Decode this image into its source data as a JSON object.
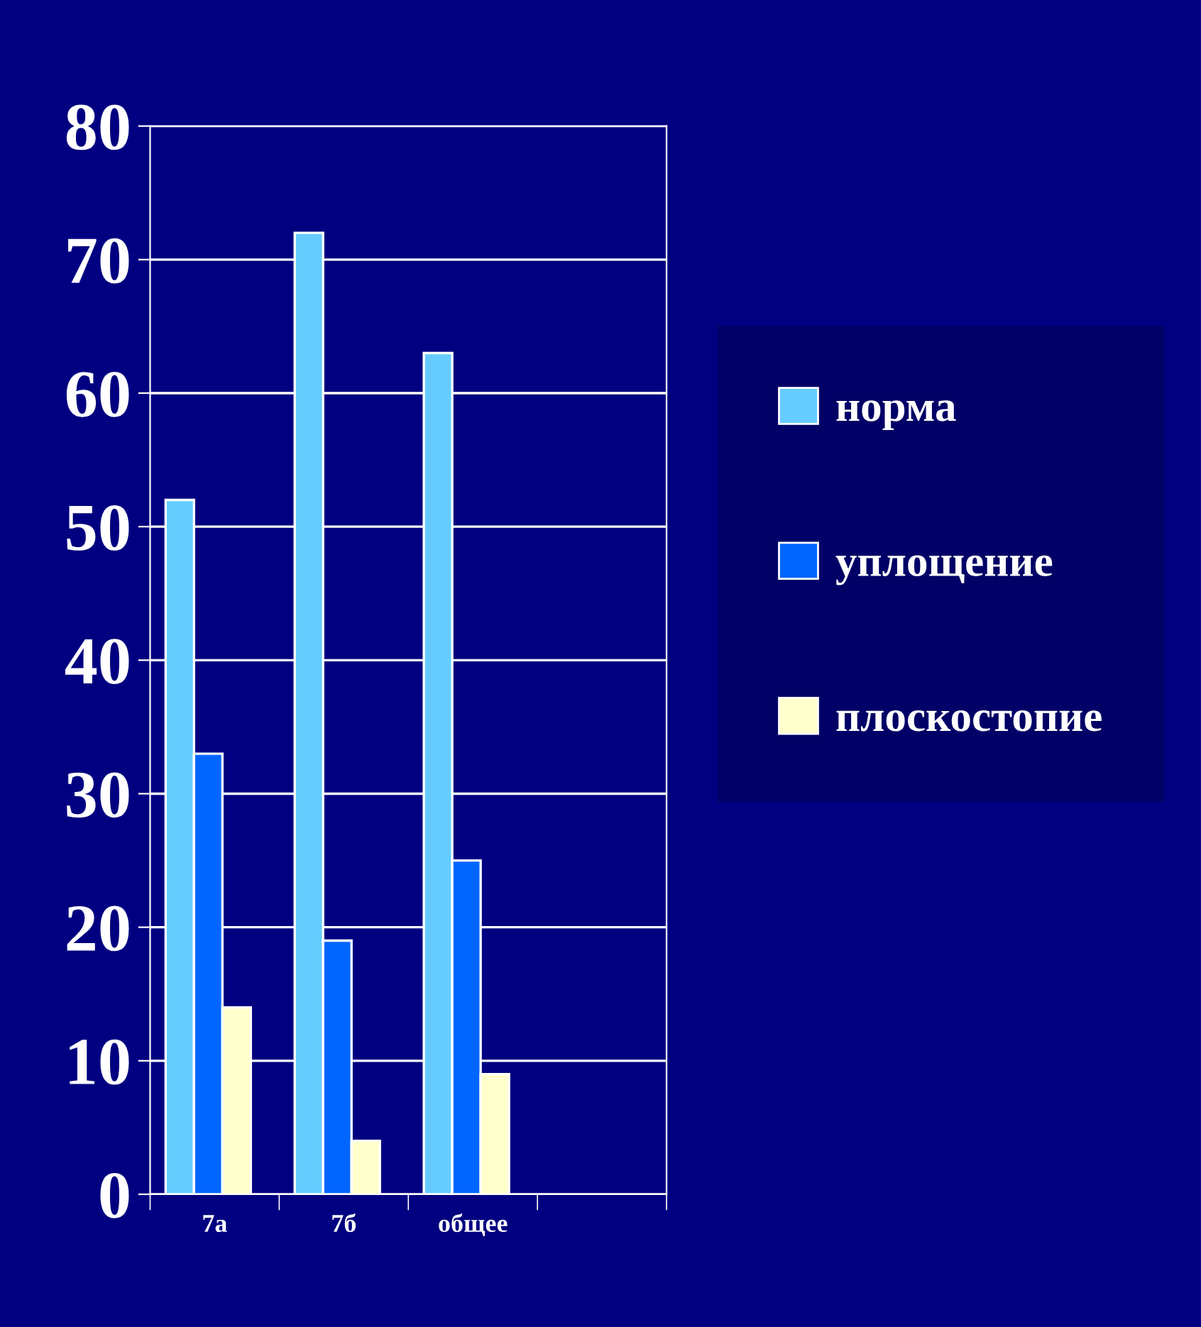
{
  "chart_data": {
    "type": "bar",
    "categories": [
      "7а",
      "7б",
      "общее",
      null
    ],
    "series": [
      {
        "name": "норма",
        "color": "#66ccff",
        "values": [
          52,
          72,
          63,
          null
        ]
      },
      {
        "name": "уплощение",
        "color": "#0066ff",
        "values": [
          33,
          19,
          25,
          null
        ]
      },
      {
        "name": "плоскостопие",
        "color": "#ffffcc",
        "values": [
          14,
          4,
          9,
          null
        ]
      }
    ],
    "ylim": [
      0,
      80
    ],
    "yticks": [
      0,
      10,
      20,
      30,
      40,
      50,
      60,
      70,
      80
    ],
    "grid": "y",
    "legend": "right"
  }
}
